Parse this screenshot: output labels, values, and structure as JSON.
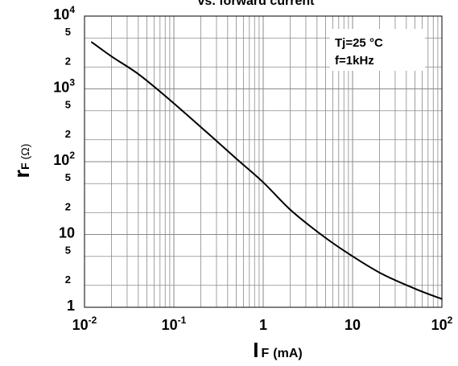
{
  "chart_data": {
    "type": "line",
    "title": "vs. forward current",
    "xlabel": {
      "main": "I",
      "sub": "F",
      "unit": "(mA)"
    },
    "ylabel": {
      "main": "r",
      "sub": "F",
      "unit": "(Ω)"
    },
    "x_scale": "log",
    "y_scale": "log",
    "xlim": [
      0.01,
      100
    ],
    "ylim": [
      1,
      10000
    ],
    "grid": true,
    "legend": "none",
    "annotations": [
      "Tj=25  °C",
      "f=1kHz"
    ],
    "x_ticks": [
      {
        "value": 0.01,
        "base": "10",
        "exp": "-2"
      },
      {
        "value": 0.1,
        "base": "10",
        "exp": "-1"
      },
      {
        "value": 1,
        "base": "1",
        "exp": ""
      },
      {
        "value": 10,
        "base": "10",
        "exp": ""
      },
      {
        "value": 100,
        "base": "10",
        "exp": "2"
      }
    ],
    "y_ticks": [
      {
        "value": 1,
        "base": "1",
        "exp": "",
        "minor": false
      },
      {
        "value": 2,
        "base": "2",
        "exp": "",
        "minor": true
      },
      {
        "value": 5,
        "base": "5",
        "exp": "",
        "minor": true
      },
      {
        "value": 10,
        "base": "10",
        "exp": "",
        "minor": false
      },
      {
        "value": 20,
        "base": "2",
        "exp": "",
        "minor": true
      },
      {
        "value": 50,
        "base": "5",
        "exp": "",
        "minor": true
      },
      {
        "value": 100,
        "base": "10",
        "exp": "2",
        "minor": false
      },
      {
        "value": 200,
        "base": "2",
        "exp": "",
        "minor": true
      },
      {
        "value": 500,
        "base": "5",
        "exp": "",
        "minor": true
      },
      {
        "value": 1000,
        "base": "10",
        "exp": "3",
        "minor": false
      },
      {
        "value": 2000,
        "base": "2",
        "exp": "",
        "minor": true
      },
      {
        "value": 5000,
        "base": "5",
        "exp": "",
        "minor": true
      },
      {
        "value": 10000,
        "base": "10",
        "exp": "4",
        "minor": false
      }
    ],
    "series": [
      {
        "color": "#000000",
        "points": [
          {
            "x": 0.012,
            "y": 4400
          },
          {
            "x": 0.02,
            "y": 2800
          },
          {
            "x": 0.04,
            "y": 1600
          },
          {
            "x": 0.08,
            "y": 800
          },
          {
            "x": 0.2,
            "y": 300
          },
          {
            "x": 0.5,
            "y": 110
          },
          {
            "x": 1,
            "y": 52
          },
          {
            "x": 2,
            "y": 22
          },
          {
            "x": 4,
            "y": 11
          },
          {
            "x": 8,
            "y": 6
          },
          {
            "x": 20,
            "y": 3
          },
          {
            "x": 50,
            "y": 1.8
          },
          {
            "x": 100,
            "y": 1.3
          }
        ]
      }
    ]
  }
}
